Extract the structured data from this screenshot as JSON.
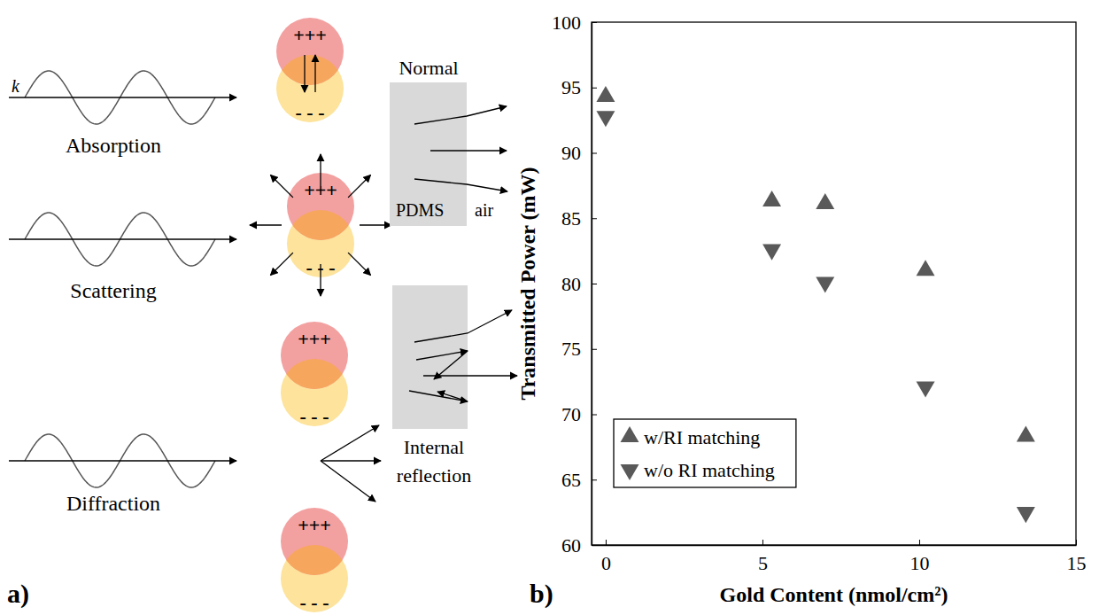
{
  "panel_labels": [
    "a)",
    "b)"
  ],
  "diagram": {
    "wave_symbol": "k",
    "processes": [
      "Absorption",
      "Scattering",
      "Diffraction"
    ],
    "charges": {
      "positive": "+++",
      "negative": "- - -"
    },
    "boxes": [
      {
        "title": "Normal",
        "material": "PDMS",
        "medium": "air"
      },
      {
        "title_lines": [
          "Internal",
          "reflection"
        ]
      }
    ]
  },
  "chart_data": {
    "type": "scatter",
    "x_label": "Gold Content (nmol/cm²)",
    "y_label": "Transmitted Power (mW)",
    "x": [
      0,
      5.3,
      7,
      10.2,
      13.4
    ],
    "series": [
      {
        "name": "w/RI matching",
        "color": "#595959",
        "marker": "triangle-up",
        "values": [
          94.3,
          86.3,
          86.1,
          81,
          68.3
        ]
      },
      {
        "name": "w/o RI matching",
        "color": "#595959",
        "marker": "triangle-down",
        "values": [
          92.8,
          82.6,
          80.1,
          72.1,
          62.5
        ]
      }
    ],
    "xlim": [
      -0.45,
      15
    ],
    "xticks": [
      0,
      5,
      10,
      15
    ],
    "ylim": [
      60,
      100
    ],
    "yticks": [
      60,
      65,
      70,
      75,
      80,
      85,
      90,
      95,
      100
    ],
    "grid": false,
    "legend": "lower left"
  }
}
